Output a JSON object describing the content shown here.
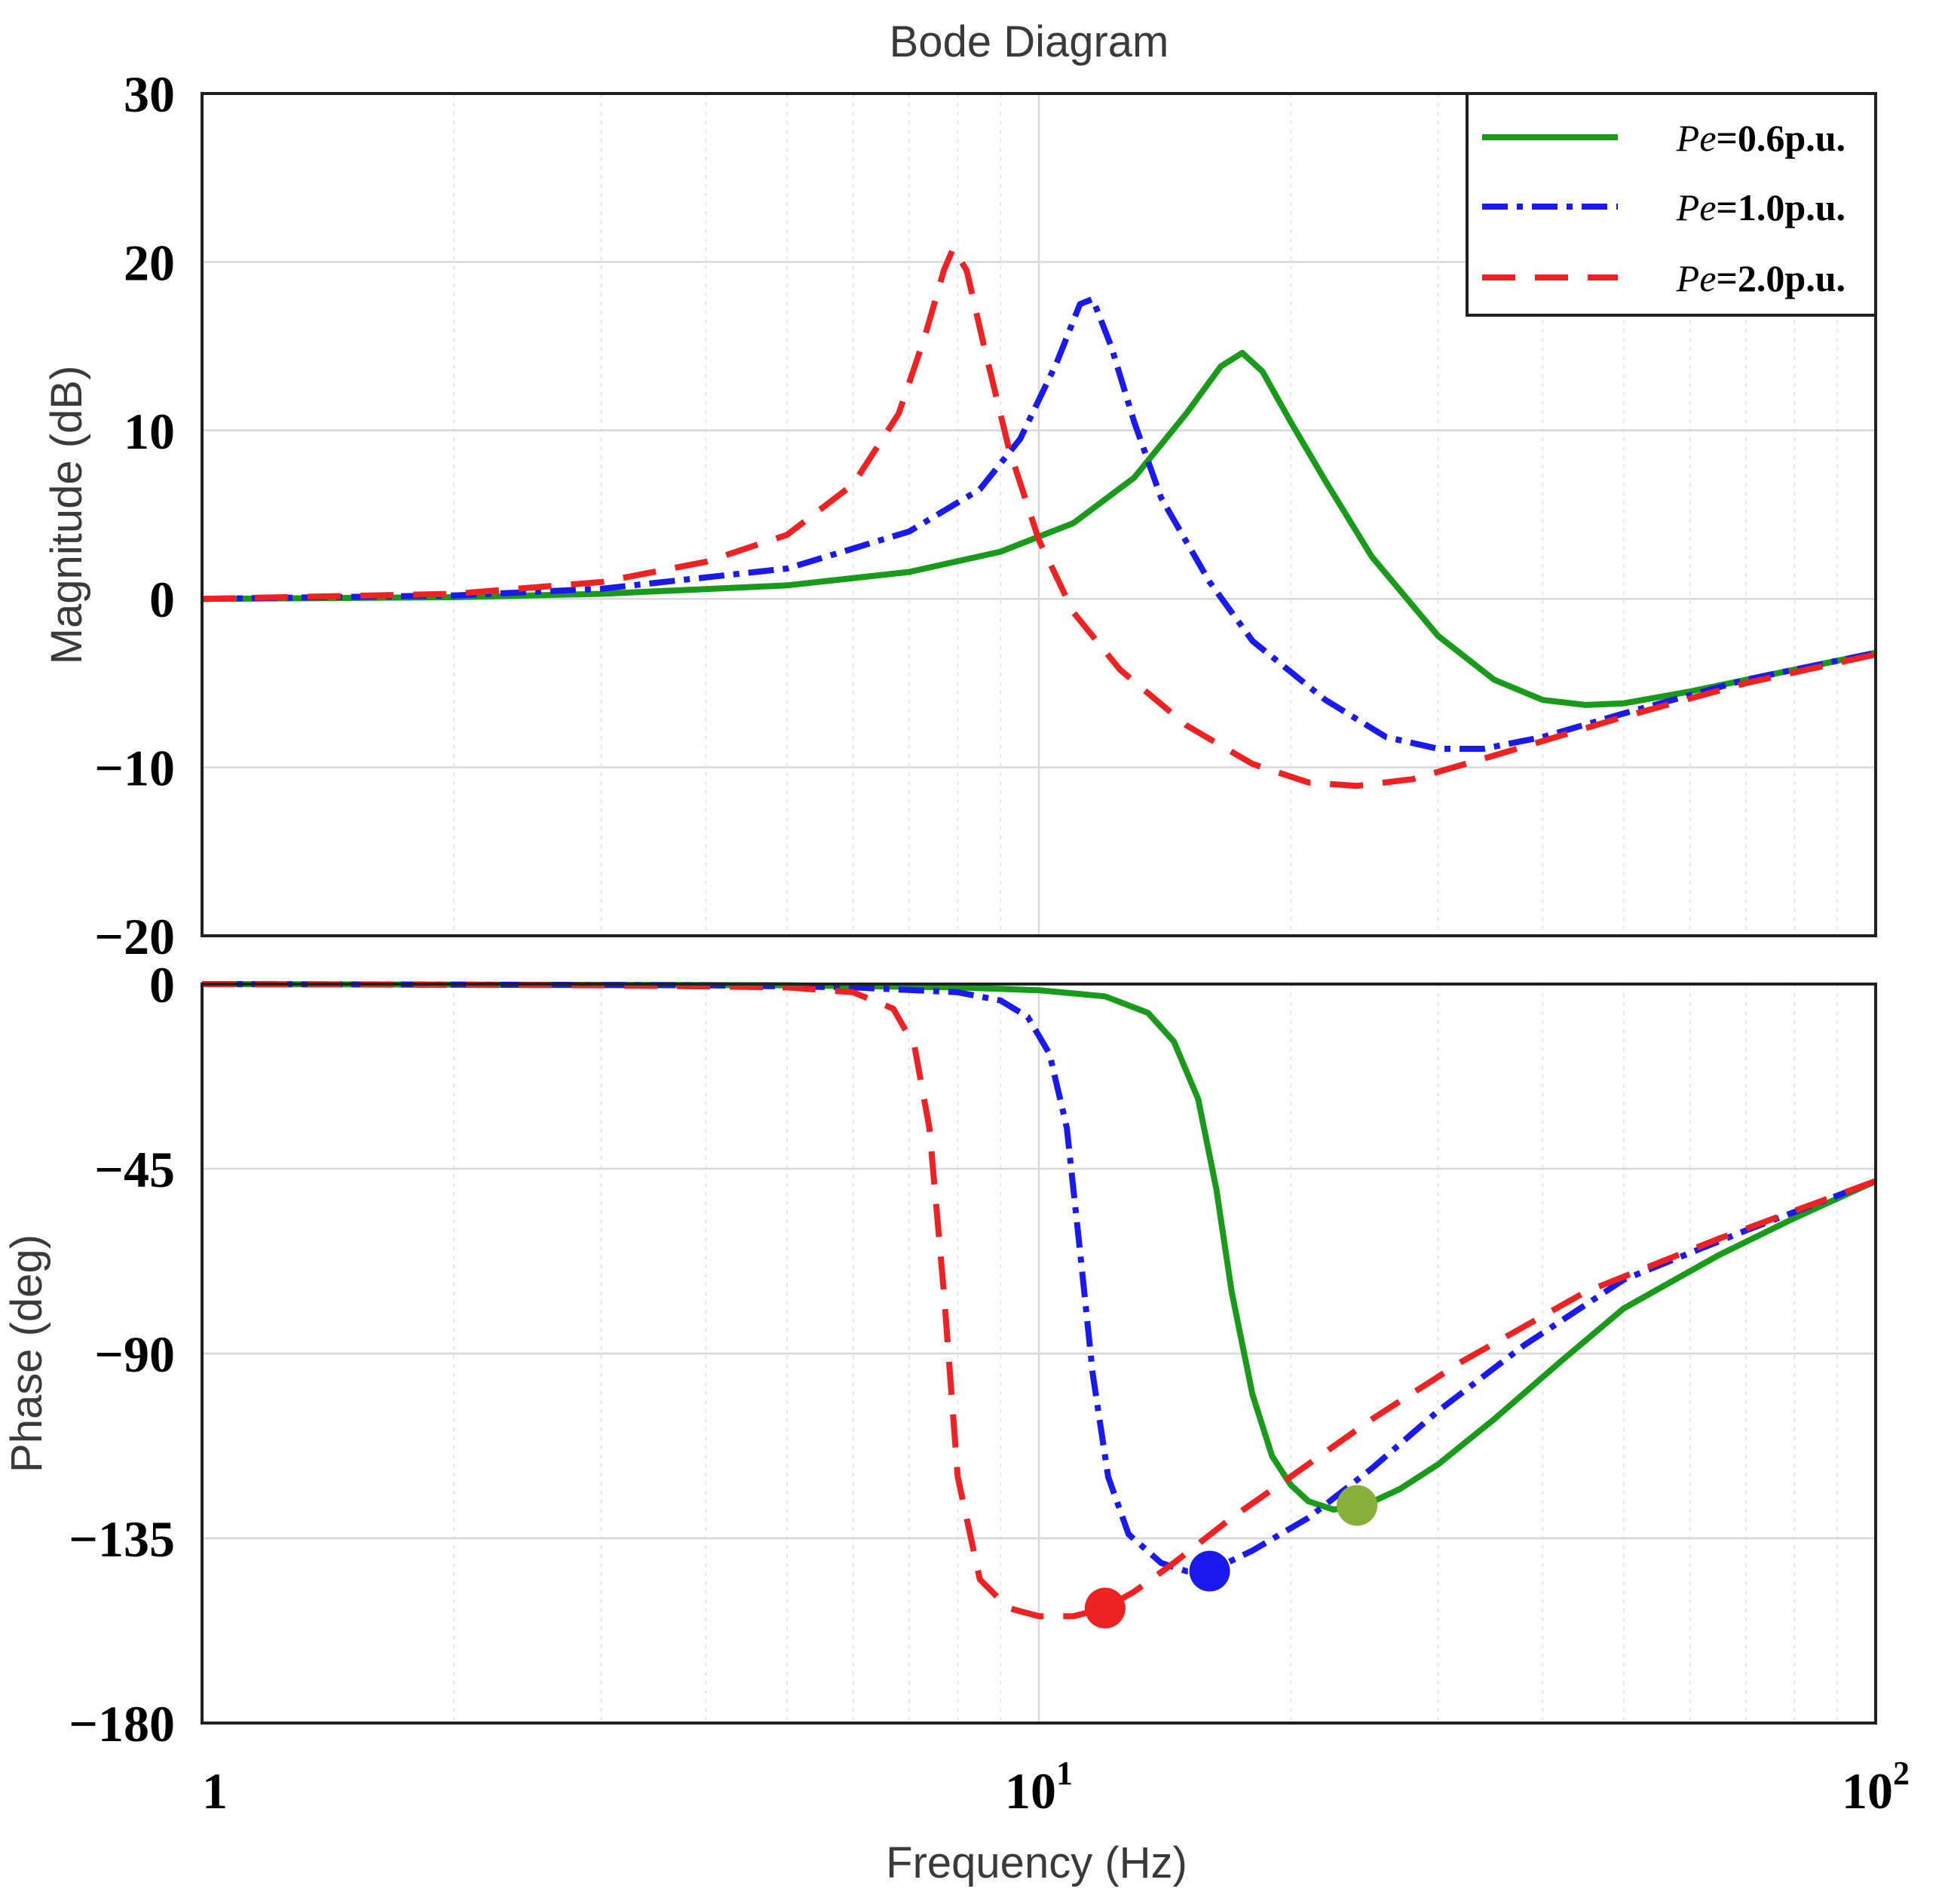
{
  "chart_data": {
    "type": "line",
    "title": "Bode Diagram",
    "xlabel": "Frequency (Hz)",
    "xscale": "log",
    "xlim": [
      1,
      100
    ],
    "x_tick_labels": [
      {
        "value": 1,
        "base": "1",
        "exp": ""
      },
      {
        "value": 10,
        "base": "10",
        "exp": "1"
      },
      {
        "value": 100,
        "base": "10",
        "exp": "2"
      }
    ],
    "grid": true,
    "legend_position": "top-right",
    "legend": [
      {
        "prefix": "Pe",
        "suffix": "=0.6p.u.",
        "series": 0
      },
      {
        "prefix": "Pe",
        "suffix": "=1.0p.u.",
        "series": 1
      },
      {
        "prefix": "Pe",
        "suffix": "=2.0p.u.",
        "series": 2
      }
    ],
    "series": [
      {
        "name": "Pe=0.6p.u.",
        "color": "#1a9a1a",
        "dash": "solid"
      },
      {
        "name": "Pe=1.0p.u.",
        "color": "#1a1aee",
        "dash": "dashdot"
      },
      {
        "name": "Pe=2.0p.u.",
        "color": "#ee2222",
        "dash": "dashed"
      }
    ],
    "subplots": [
      {
        "ylabel": "Magnitude (dB)",
        "ylim": [
          -20,
          30
        ],
        "yticks": [
          30,
          20,
          10,
          0,
          -10,
          -20
        ],
        "ytick_labels": [
          "30",
          "20",
          "10",
          "0",
          "−10",
          "−20"
        ],
        "series_points": [
          [
            [
              1,
              0
            ],
            [
              2,
              0.1
            ],
            [
              3,
              0.3
            ],
            [
              5,
              0.8
            ],
            [
              7,
              1.6
            ],
            [
              9,
              2.8
            ],
            [
              11,
              4.5
            ],
            [
              13,
              7.2
            ],
            [
              15,
              11
            ],
            [
              16.5,
              13.8
            ],
            [
              17.5,
              14.6
            ],
            [
              18.5,
              13.5
            ],
            [
              20,
              10.5
            ],
            [
              22,
              7
            ],
            [
              25,
              2.5
            ],
            [
              30,
              -2.2
            ],
            [
              35,
              -4.8
            ],
            [
              40,
              -6
            ],
            [
              45,
              -6.3
            ],
            [
              50,
              -6.2
            ],
            [
              60,
              -5.5
            ],
            [
              80,
              -4.2
            ],
            [
              100,
              -3.2
            ]
          ],
          [
            [
              1,
              0
            ],
            [
              2,
              0.2
            ],
            [
              3,
              0.6
            ],
            [
              5,
              1.8
            ],
            [
              7,
              4
            ],
            [
              8.5,
              6.5
            ],
            [
              9.5,
              9.5
            ],
            [
              10.5,
              14
            ],
            [
              11.2,
              17.5
            ],
            [
              11.6,
              17.8
            ],
            [
              12.2,
              15
            ],
            [
              13,
              10.5
            ],
            [
              14,
              6
            ],
            [
              16,
              1
            ],
            [
              18,
              -2.5
            ],
            [
              22,
              -6
            ],
            [
              26,
              -8.2
            ],
            [
              30,
              -8.9
            ],
            [
              34,
              -8.9
            ],
            [
              40,
              -8.2
            ],
            [
              50,
              -6.8
            ],
            [
              70,
              -4.8
            ],
            [
              100,
              -3.2
            ]
          ],
          [
            [
              1,
              0
            ],
            [
              2,
              0.3
            ],
            [
              3,
              1
            ],
            [
              4,
              2.2
            ],
            [
              5,
              3.8
            ],
            [
              6,
              6.8
            ],
            [
              6.8,
              11
            ],
            [
              7.3,
              15.5
            ],
            [
              7.7,
              19.5
            ],
            [
              7.9,
              20.8
            ],
            [
              8.2,
              19.5
            ],
            [
              8.6,
              15
            ],
            [
              9.2,
              9
            ],
            [
              10,
              3.5
            ],
            [
              11,
              -0.8
            ],
            [
              12.5,
              -4.2
            ],
            [
              15,
              -7.5
            ],
            [
              18,
              -9.8
            ],
            [
              21,
              -10.9
            ],
            [
              24,
              -11.1
            ],
            [
              28,
              -10.7
            ],
            [
              35,
              -9.3
            ],
            [
              50,
              -7
            ],
            [
              70,
              -5
            ],
            [
              100,
              -3.3
            ]
          ]
        ]
      },
      {
        "ylabel": "Phase (deg)",
        "ylim": [
          -180,
          0
        ],
        "yticks": [
          0,
          -45,
          -90,
          -135,
          -180
        ],
        "ytick_labels": [
          "0",
          "−45",
          "−90",
          "−135",
          "−180"
        ],
        "series_points": [
          [
            [
              1,
              0
            ],
            [
              5,
              -0.3
            ],
            [
              8,
              -0.8
            ],
            [
              10,
              -1.5
            ],
            [
              12,
              -3
            ],
            [
              13.5,
              -7
            ],
            [
              14.5,
              -14
            ],
            [
              15.5,
              -28
            ],
            [
              16.3,
              -50
            ],
            [
              17,
              -75
            ],
            [
              18,
              -100
            ],
            [
              19,
              -115
            ],
            [
              20,
              -122
            ],
            [
              21,
              -126
            ],
            [
              22.5,
              -128
            ],
            [
              24.5,
              -127
            ],
            [
              27,
              -123
            ],
            [
              30,
              -117
            ],
            [
              35,
              -106
            ],
            [
              42,
              -92
            ],
            [
              50,
              -79
            ],
            [
              65,
              -66
            ],
            [
              80,
              -57
            ],
            [
              100,
              -48
            ]
          ],
          [
            [
              1,
              0
            ],
            [
              4,
              -0.3
            ],
            [
              6,
              -0.8
            ],
            [
              8,
              -2
            ],
            [
              9,
              -4
            ],
            [
              9.7,
              -8
            ],
            [
              10.3,
              -17
            ],
            [
              10.8,
              -35
            ],
            [
              11.2,
              -65
            ],
            [
              11.6,
              -95
            ],
            [
              12.1,
              -120
            ],
            [
              12.8,
              -134
            ],
            [
              14,
              -141
            ],
            [
              15,
              -143
            ],
            [
              16,
              -143
            ],
            [
              18,
              -138
            ],
            [
              21,
              -130
            ],
            [
              25,
              -118
            ],
            [
              30,
              -104
            ],
            [
              38,
              -88
            ],
            [
              50,
              -72
            ],
            [
              70,
              -60
            ],
            [
              100,
              -48
            ]
          ],
          [
            [
              1,
              0
            ],
            [
              3,
              -0.3
            ],
            [
              5,
              -0.8
            ],
            [
              6,
              -2
            ],
            [
              6.7,
              -6
            ],
            [
              7.1,
              -15
            ],
            [
              7.4,
              -35
            ],
            [
              7.7,
              -75
            ],
            [
              8,
              -120
            ],
            [
              8.5,
              -145
            ],
            [
              9.2,
              -152
            ],
            [
              10,
              -154
            ],
            [
              11,
              -154
            ],
            [
              12,
              -152
            ],
            [
              13,
              -148
            ],
            [
              14.5,
              -141
            ],
            [
              17,
              -130
            ],
            [
              20,
              -120
            ],
            [
              25,
              -106
            ],
            [
              32,
              -92
            ],
            [
              45,
              -75
            ],
            [
              65,
              -62
            ],
            [
              100,
              -48
            ]
          ]
        ],
        "markers": [
          {
            "series": 2,
            "x": 12,
            "y": -152
          },
          {
            "series": 1,
            "x": 16,
            "y": -143
          },
          {
            "series": 0,
            "x": 24,
            "y": -127
          }
        ],
        "marker_colors": [
          "#ee2222",
          "#1a1aee",
          "#86b03a"
        ]
      }
    ]
  }
}
